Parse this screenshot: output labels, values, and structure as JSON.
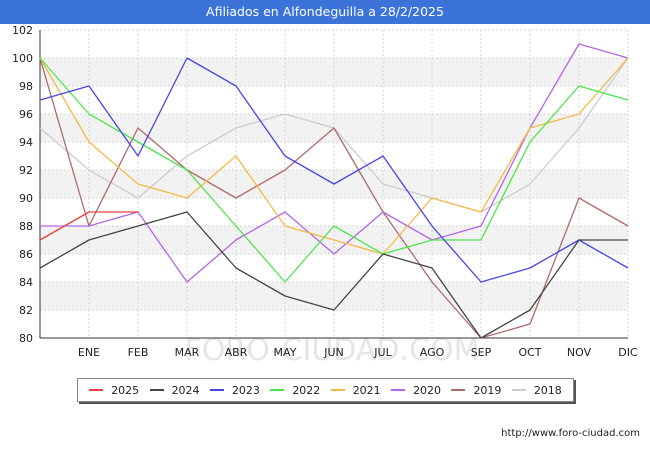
{
  "chart_data": {
    "type": "line",
    "title": "Afiliados en Alfondeguilla a 28/2/2025",
    "x_labels": [
      "",
      "ENE",
      "FEB",
      "MAR",
      "ABR",
      "MAY",
      "JUN",
      "JUL",
      "AGO",
      "SEP",
      "OCT",
      "NOV",
      "DIC"
    ],
    "ylim": [
      80,
      102
    ],
    "yticks": [
      80,
      82,
      84,
      86,
      88,
      90,
      92,
      94,
      96,
      98,
      100,
      102
    ],
    "grid": true,
    "legend_position": "bottom",
    "watermark": "FORO-CIUDAD.COM",
    "series": [
      {
        "name": "2025",
        "color": "#e8413a",
        "values": [
          87,
          89,
          89
        ]
      },
      {
        "name": "2024",
        "color": "#444444",
        "values": [
          85,
          87,
          88,
          89,
          85,
          83,
          82,
          86,
          85,
          80,
          82,
          87,
          87
        ]
      },
      {
        "name": "2023",
        "color": "#4646e6",
        "values": [
          97,
          98,
          93,
          100,
          98,
          93,
          91,
          93,
          88,
          84,
          85,
          87,
          85
        ]
      },
      {
        "name": "2022",
        "color": "#4ce64c",
        "values": [
          100,
          96,
          94,
          92,
          88,
          84,
          88,
          86,
          87,
          87,
          94,
          98,
          97
        ]
      },
      {
        "name": "2021",
        "color": "#f5b945",
        "values": [
          100,
          94,
          91,
          90,
          93,
          88,
          87,
          86,
          90,
          89,
          95,
          96,
          100
        ]
      },
      {
        "name": "2020",
        "color": "#b565e8",
        "values": [
          88,
          88,
          89,
          84,
          87,
          89,
          86,
          89,
          87,
          88,
          95,
          101,
          100
        ]
      },
      {
        "name": "2019",
        "color": "#b06a6a",
        "values": [
          100,
          88,
          95,
          92,
          90,
          92,
          95,
          89,
          84,
          80,
          81,
          90,
          88
        ]
      },
      {
        "name": "2018",
        "color": "#cccccc",
        "values": [
          95,
          92,
          90,
          93,
          95,
          96,
          95,
          91,
          90,
          89,
          91,
          95,
          100
        ]
      }
    ]
  },
  "footer": {
    "url": "http://www.foro-ciudad.com"
  }
}
